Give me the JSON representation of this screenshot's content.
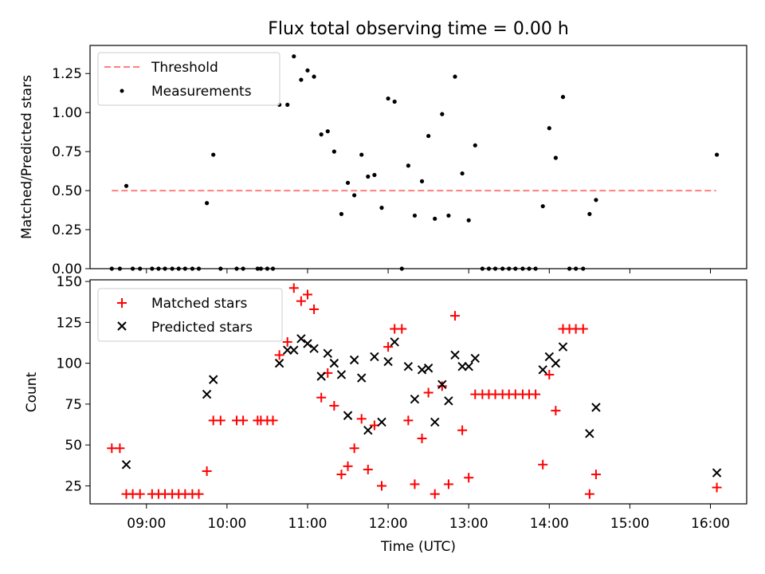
{
  "chart_data": [
    {
      "type": "scatter",
      "title": "Flux total observing time = 0.00 h",
      "xlabel": "",
      "ylabel": "Matched/Predicted stars",
      "xlim": [
        8.3,
        16.45
      ],
      "ylim": [
        0,
        1.43
      ],
      "yticks": [
        0.0,
        0.25,
        0.5,
        0.75,
        1.0,
        1.25
      ],
      "ytick_labels": [
        "0.00",
        "0.25",
        "0.50",
        "0.75",
        "1.00",
        "1.25"
      ],
      "grid": false,
      "legend": "upper-left",
      "series": [
        {
          "name": "Threshold",
          "style": "dashed-line",
          "color": "#ff7f7f",
          "x": [
            8.57,
            16.07
          ],
          "y": [
            0.5,
            0.5
          ]
        },
        {
          "name": "Measurements",
          "style": "dot",
          "color": "#000000",
          "x": [
            8.57,
            8.67,
            8.75,
            8.83,
            8.92,
            9.07,
            9.15,
            9.23,
            9.32,
            9.4,
            9.48,
            9.57,
            9.65,
            9.75,
            9.83,
            9.92,
            10.12,
            10.2,
            10.38,
            10.42,
            10.5,
            10.57,
            10.65,
            10.75,
            10.83,
            10.92,
            11.0,
            11.08,
            11.17,
            11.25,
            11.33,
            11.42,
            11.5,
            11.58,
            11.67,
            11.75,
            11.83,
            11.92,
            12.0,
            12.08,
            12.17,
            12.25,
            12.33,
            12.42,
            12.5,
            12.58,
            12.67,
            12.75,
            12.83,
            12.92,
            13.0,
            13.08,
            13.17,
            13.25,
            13.33,
            13.42,
            13.5,
            13.58,
            13.67,
            13.75,
            13.83,
            13.92,
            14.0,
            14.08,
            14.17,
            14.25,
            14.33,
            14.42,
            14.5,
            14.58,
            16.08
          ],
          "y": [
            0.0,
            0.0,
            0.53,
            0.0,
            0.0,
            0.0,
            0.0,
            0.0,
            0.0,
            0.0,
            0.0,
            0.0,
            0.0,
            0.42,
            0.73,
            0.0,
            0.0,
            0.0,
            0.0,
            0.0,
            0.0,
            0.0,
            1.05,
            1.05,
            1.36,
            1.21,
            1.27,
            1.23,
            0.86,
            0.88,
            0.75,
            0.35,
            0.55,
            0.47,
            0.73,
            0.59,
            0.6,
            0.39,
            1.09,
            1.07,
            0.0,
            0.66,
            0.34,
            0.56,
            0.85,
            0.32,
            0.99,
            0.34,
            1.23,
            0.61,
            0.31,
            0.79,
            0.0,
            0.0,
            0.0,
            0.0,
            0.0,
            0.0,
            0.0,
            0.0,
            0.0,
            0.4,
            0.9,
            0.71,
            1.1,
            0.0,
            0.0,
            0.0,
            0.35,
            0.44,
            0.73
          ]
        }
      ]
    },
    {
      "type": "scatter",
      "title": "",
      "xlabel": "Time (UTC)",
      "ylabel": "Count",
      "xlim": [
        8.3,
        16.45
      ],
      "ylim": [
        14,
        151
      ],
      "xticks": [
        9,
        10,
        11,
        12,
        13,
        14,
        15,
        16
      ],
      "xtick_labels": [
        "09:00",
        "10:00",
        "11:00",
        "12:00",
        "13:00",
        "14:00",
        "15:00",
        "16:00"
      ],
      "yticks": [
        25,
        50,
        75,
        100,
        125,
        150
      ],
      "ytick_labels": [
        "25",
        "50",
        "75",
        "100",
        "125",
        "150"
      ],
      "grid": false,
      "legend": "upper-left",
      "series": [
        {
          "name": "Matched stars",
          "style": "plus",
          "color": "#ff0000",
          "x": [
            8.57,
            8.67,
            8.75,
            8.83,
            8.92,
            9.07,
            9.15,
            9.23,
            9.32,
            9.4,
            9.48,
            9.57,
            9.65,
            9.75,
            9.83,
            9.92,
            10.12,
            10.2,
            10.38,
            10.42,
            10.5,
            10.57,
            10.65,
            10.75,
            10.83,
            10.92,
            11.0,
            11.08,
            11.17,
            11.25,
            11.33,
            11.42,
            11.5,
            11.58,
            11.67,
            11.75,
            11.83,
            11.92,
            12.0,
            12.08,
            12.17,
            12.25,
            12.33,
            12.42,
            12.5,
            12.58,
            12.67,
            12.75,
            12.83,
            12.92,
            13.0,
            13.08,
            13.17,
            13.25,
            13.33,
            13.42,
            13.5,
            13.58,
            13.67,
            13.75,
            13.83,
            13.92,
            14.0,
            14.08,
            14.17,
            14.25,
            14.33,
            14.42,
            14.5,
            14.58,
            16.08
          ],
          "y": [
            48,
            48,
            20,
            20,
            20,
            20,
            20,
            20,
            20,
            20,
            20,
            20,
            20,
            34,
            65,
            65,
            65,
            65,
            65,
            65,
            65,
            65,
            105,
            113,
            146,
            138,
            142,
            133,
            79,
            94,
            74,
            32,
            37,
            48,
            66,
            35,
            62,
            25,
            110,
            121,
            121,
            65,
            26,
            54,
            82,
            20,
            86,
            26,
            129,
            59,
            30,
            81,
            81,
            81,
            81,
            81,
            81,
            81,
            81,
            81,
            81,
            38,
            93,
            71,
            121,
            121,
            121,
            121,
            20,
            32,
            24
          ]
        },
        {
          "name": "Predicted stars",
          "style": "x",
          "color": "#000000",
          "x": [
            8.75,
            9.75,
            9.83,
            10.65,
            10.75,
            10.83,
            10.92,
            11.0,
            11.08,
            11.17,
            11.25,
            11.33,
            11.42,
            11.5,
            11.58,
            11.67,
            11.75,
            11.83,
            11.92,
            12.0,
            12.08,
            12.25,
            12.33,
            12.42,
            12.5,
            12.58,
            12.67,
            12.75,
            12.83,
            12.92,
            13.0,
            13.08,
            13.92,
            14.0,
            14.08,
            14.17,
            14.5,
            14.58,
            16.08
          ],
          "y": [
            38,
            81,
            90,
            100,
            108,
            108,
            115,
            112,
            109,
            92,
            106,
            100,
            93,
            68,
            102,
            91,
            59,
            104,
            64,
            101,
            113,
            98,
            78,
            96,
            97,
            64,
            87,
            77,
            105,
            98,
            98,
            103,
            96,
            104,
            100,
            110,
            57,
            73,
            33
          ]
        }
      ]
    }
  ]
}
